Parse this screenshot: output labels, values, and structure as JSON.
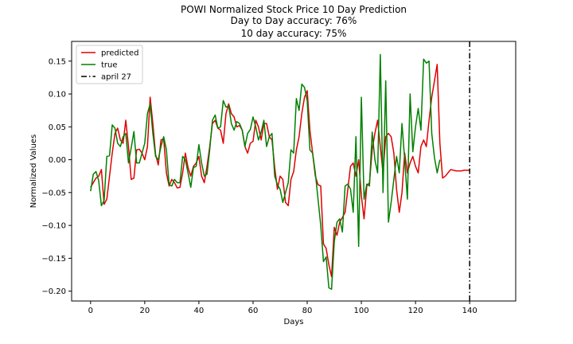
{
  "chart_data": {
    "type": "line",
    "title_lines": [
      "POWI Normalized Stock Price 10 Day Prediction",
      "Day to Day accuracy: 76%",
      "10 day accuracy: 75%"
    ],
    "xlabel": "Days",
    "ylabel": "Normalized Values",
    "xlim": [
      -7,
      157
    ],
    "ylim": [
      -0.215,
      0.18
    ],
    "xticks": [
      0,
      20,
      40,
      60,
      80,
      100,
      120,
      140
    ],
    "yticks": [
      -0.2,
      -0.15,
      -0.1,
      -0.05,
      0.0,
      0.05,
      0.1,
      0.15
    ],
    "ytick_labels": [
      "−0.20",
      "−0.15",
      "−0.10",
      "−0.05",
      "0.00",
      "0.05",
      "0.10",
      "0.15"
    ],
    "grid": false,
    "legend": {
      "placement": "top-left",
      "entries": [
        "predicted",
        "true",
        "april 27"
      ]
    },
    "vline": {
      "x": 140,
      "label": "april 27",
      "color": "#000000",
      "style": "dash-dot"
    },
    "series": [
      {
        "name": "predicted",
        "color": "#e00000",
        "x_start": 0,
        "values": [
          -0.042,
          -0.035,
          -0.028,
          -0.025,
          -0.015,
          -0.068,
          -0.06,
          -0.025,
          0.01,
          0.04,
          0.048,
          0.03,
          0.025,
          0.06,
          0.02,
          -0.03,
          -0.028,
          0.015,
          0.016,
          0.01,
          0.0,
          0.02,
          0.095,
          0.055,
          0.008,
          -0.008,
          0.03,
          0.032,
          -0.02,
          -0.04,
          -0.03,
          -0.035,
          -0.043,
          -0.042,
          -0.02,
          0.01,
          -0.012,
          -0.025,
          -0.01,
          -0.005,
          0.005,
          -0.025,
          -0.035,
          -0.01,
          0.02,
          0.055,
          0.06,
          0.048,
          0.045,
          0.025,
          0.07,
          0.085,
          0.07,
          0.065,
          0.05,
          0.052,
          0.045,
          0.02,
          0.01,
          0.025,
          0.028,
          0.06,
          0.05,
          0.03,
          0.055,
          0.055,
          0.035,
          0.03,
          -0.012,
          -0.045,
          -0.025,
          -0.03,
          -0.065,
          -0.07,
          -0.03,
          -0.018,
          0.015,
          0.035,
          0.07,
          0.095,
          0.105,
          0.045,
          0.01,
          -0.025,
          -0.038,
          -0.04,
          -0.128,
          -0.135,
          -0.16,
          -0.178,
          -0.103,
          -0.115,
          -0.095,
          -0.088,
          -0.08,
          -0.045,
          -0.01,
          -0.005,
          -0.025,
          0.0,
          -0.055,
          -0.09,
          -0.04,
          -0.035,
          0.015,
          0.04,
          0.06,
          0.02,
          -0.02,
          0.035,
          0.04,
          0.035,
          0.01,
          -0.045,
          -0.08,
          -0.05,
          0.01,
          -0.02,
          -0.005,
          0.005,
          -0.01,
          -0.02,
          0.02,
          0.03,
          0.02,
          0.06,
          0.095,
          0.12,
          0.145,
          0.025,
          -0.028,
          -0.025,
          -0.02,
          -0.015,
          -0.016,
          -0.017,
          -0.017,
          -0.017,
          -0.016,
          -0.016,
          -0.016
        ]
      },
      {
        "name": "true",
        "color": "#008000",
        "x_start": 0,
        "values": [
          -0.048,
          -0.022,
          -0.018,
          -0.032,
          -0.07,
          -0.062,
          0.005,
          0.006,
          0.053,
          0.048,
          0.025,
          0.02,
          0.035,
          0.04,
          -0.005,
          0.018,
          0.043,
          -0.005,
          -0.005,
          0.01,
          0.025,
          0.07,
          0.085,
          0.04,
          0.005,
          0.0,
          0.02,
          0.035,
          0.015,
          -0.038,
          -0.04,
          -0.03,
          -0.035,
          -0.035,
          0.005,
          0.0,
          -0.02,
          -0.042,
          -0.012,
          -0.01,
          0.023,
          -0.005,
          -0.025,
          -0.022,
          0.015,
          0.06,
          0.068,
          0.048,
          0.05,
          0.09,
          0.08,
          0.082,
          0.055,
          0.045,
          0.058,
          0.055,
          0.045,
          0.02,
          0.04,
          0.046,
          0.065,
          0.05,
          0.03,
          0.042,
          0.06,
          0.02,
          0.035,
          0.04,
          -0.025,
          -0.038,
          -0.045,
          -0.065,
          -0.05,
          -0.035,
          0.015,
          0.01,
          0.093,
          0.075,
          0.115,
          0.11,
          0.09,
          0.015,
          0.01,
          -0.02,
          -0.06,
          -0.1,
          -0.155,
          -0.148,
          -0.195,
          -0.197,
          -0.125,
          -0.095,
          -0.09,
          -0.11,
          -0.04,
          -0.037,
          -0.045,
          -0.08,
          0.035,
          -0.132,
          0.095,
          -0.06,
          -0.037,
          -0.04,
          0.042,
          0.0,
          -0.02,
          0.16,
          -0.05,
          0.12,
          -0.095,
          -0.065,
          -0.03,
          0.005,
          -0.02,
          0.055,
          0.0,
          -0.06,
          0.1,
          0.012,
          0.05,
          0.078,
          0.045,
          0.153,
          0.147,
          0.15,
          0.04,
          0.003,
          -0.02,
          0.0
        ]
      }
    ]
  }
}
